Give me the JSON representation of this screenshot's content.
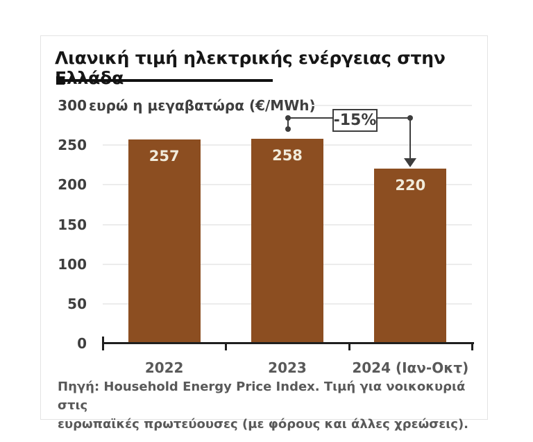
{
  "chart": {
    "title": "Λιανική τιμή ηλεκτρικής ενέργειας στην Ελλάδα",
    "unit_label": "ευρώ η μεγαβατώρα (€/MWh)",
    "annotation_label": "-15%",
    "source_lines": [
      "Πηγή: Household Energy Price Index. Τιμή για νοικοκυριά στις",
      "ευρωπαϊκές πρωτεύουσες (με φόρους και άλλες χρεώσεις)."
    ],
    "colors": {
      "bar": "#8c4e21",
      "bar_value_text": "#f1ebda",
      "gridline": "#ececec",
      "axis": "#1f1f1f",
      "annotation": "#3d3d3d",
      "title_text": "#161616",
      "dark_text": "#3f3f3f",
      "mid_text": "#595959",
      "card_border": "#e3e3e3"
    }
  },
  "chart_data": {
    "type": "bar",
    "categories": [
      "2022",
      "2023",
      "2024 (Ιαν-Οκτ)"
    ],
    "values": [
      257,
      258,
      220
    ],
    "title": "Λιανική τιμή ηλεκτρικής ενέργειας στην Ελλάδα",
    "xlabel": "",
    "ylabel": "ευρώ η μεγαβατώρα (€/MWh)",
    "ylim": [
      0,
      300
    ],
    "yticks": [
      0,
      50,
      100,
      150,
      200,
      250,
      300
    ],
    "grid": true,
    "legend": false,
    "bar_color": "#8c4e21",
    "annotation": {
      "text": "-15%",
      "from_category": "2023",
      "to_category": "2024 (Ιαν-Οκτ)"
    }
  }
}
